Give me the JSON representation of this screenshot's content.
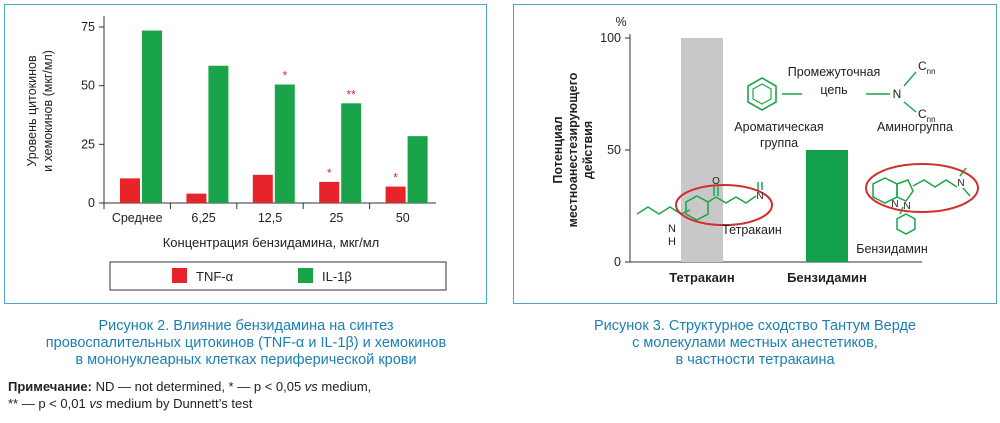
{
  "figure2": {
    "caption_lines": [
      "Рисунок 2.  Влияние бензидамина на синтез",
      "провоспалительных цитокинов (TNF-α и IL-1β) и хемокинов",
      "в мононуклеарных клетках периферической крови"
    ],
    "note_label": "Примечание:",
    "note_line1": " ND — not determined, * — p < 0,05 ",
    "note_vs1": "vs",
    "note_line1_end": " medium,",
    "note_line2": "** — p < 0,01 ",
    "note_vs2": "vs",
    "note_line2_end": " medium by Dunnett’s test"
  },
  "figure3": {
    "caption_lines": [
      "Рисунок 3. Структурное сходство Тантум Верде",
      "с молекулами местных анестетиков,",
      "в частности тетракаина"
    ],
    "labels": {
      "aromatic": [
        "Ароматическая",
        "группа"
      ],
      "chain": [
        "Промежуточная",
        "цепь"
      ],
      "amino": "Аминогруппа",
      "tetracaine_mol": "Тетракаин",
      "benzydamine_mol": "Бензидамин",
      "nh_n": "N",
      "nh_h": "H",
      "o_label": "O",
      "n_label": "N",
      "cn1": "C",
      "cn1_sub": "n",
      "cn1_sub2": "n",
      "cn2": "C",
      "cn2_sub": "n",
      "cn2_sub2": "n"
    }
  },
  "colors": {
    "tnf": "#e8242b",
    "il1b": "#1aa44a",
    "tetracaine_bar": "#c8c8c8",
    "benzydamine_bar": "#12a04a",
    "caption": "#1b7fb3",
    "frame": "#4ea6c8",
    "ellipse": "#d32f2f",
    "molecule": "#1aa44a"
  },
  "chart_data": [
    {
      "type": "bar",
      "title": "",
      "xlabel": "Концентрация бензидамина, мкг/мл",
      "ylabel": [
        "Уровень цитокинов",
        "и хемокинов (мкг/мл)"
      ],
      "categories": [
        "Среднее",
        "6,25",
        "12,5",
        "25",
        "50"
      ],
      "yticks": [
        0,
        25,
        50,
        75
      ],
      "ylim": [
        0,
        78
      ],
      "series": [
        {
          "name": "TNF-α",
          "values": [
            10.5,
            4,
            12,
            9,
            7
          ]
        },
        {
          "name": "IL-1β",
          "values": [
            73.5,
            58.5,
            50.5,
            42.5,
            28.5
          ]
        }
      ],
      "annotations": [
        {
          "category": "12,5",
          "series": "IL-1β",
          "text": "*"
        },
        {
          "category": "25",
          "series": "IL-1β",
          "text": "**"
        },
        {
          "category": "25",
          "series": "TNF-α",
          "text": "*"
        },
        {
          "category": "50",
          "series": "TNF-α",
          "text": "*"
        }
      ],
      "legend_position": "bottom"
    },
    {
      "type": "bar",
      "title": "",
      "unit_label": "%",
      "ylabel": [
        "Потенциал",
        "местноанестезирующего",
        "действия"
      ],
      "categories": [
        "Тетракаин",
        "Бензидамин"
      ],
      "yticks": [
        0,
        50,
        100
      ],
      "ylim": [
        0,
        100
      ],
      "values": [
        100,
        50
      ]
    }
  ]
}
